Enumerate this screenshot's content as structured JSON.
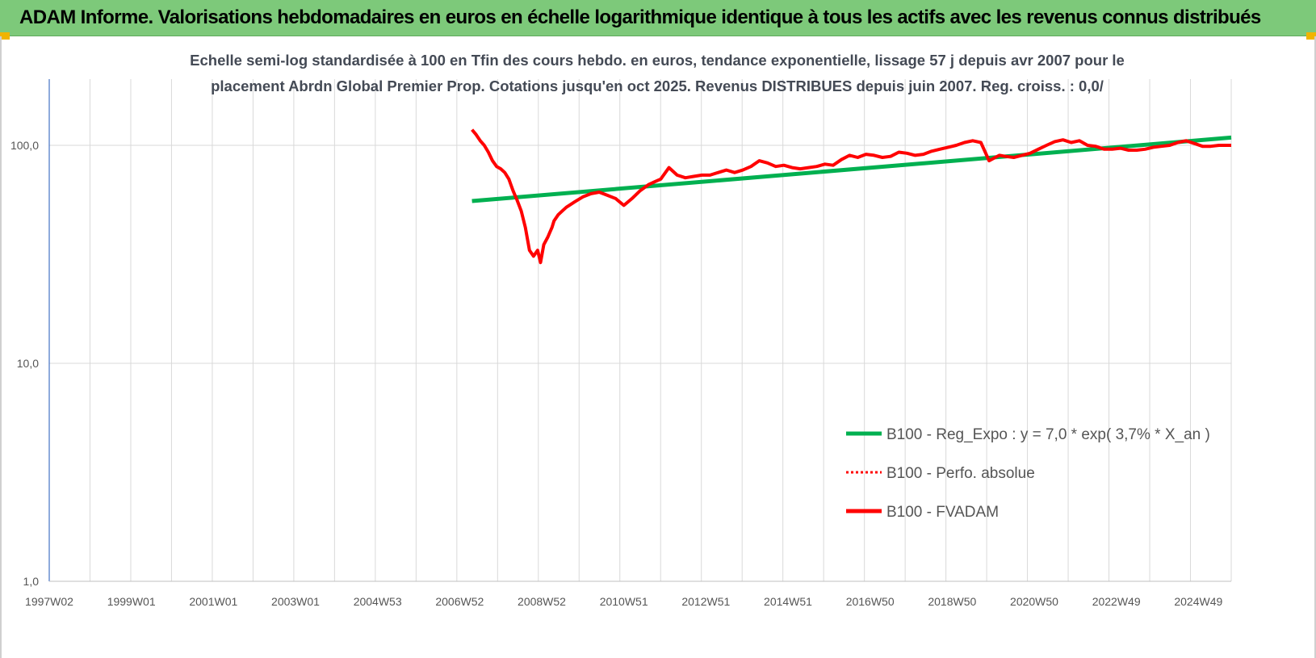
{
  "banner": {
    "title": "ADAM Informe. Valorisations hebdomadaires en euros en échelle logarithmique identique à tous les actifs avec les revenus connus distribués"
  },
  "colors": {
    "banner_bg": "#7dc97a",
    "trend": "#00b050",
    "series": "#ff0000",
    "grid": "#d9d9d9",
    "axis": "#4472c4"
  },
  "chart_data": {
    "type": "line",
    "title_lines": [
      "Echelle semi-log standardisée à 100 en Tfin des cours hebdo. en euros, tendance exponentielle, lissage 57 j depuis avr 2007 pour le",
      "placement Abrdn Global Premier Prop. Cotations jusqu'en oct 2025. Revenus DISTRIBUES depuis juin 2007. Reg. croiss. : 0,0/"
    ],
    "y_scale": "log",
    "ylim": [
      1,
      200
    ],
    "y_ticks": [
      {
        "value": 1,
        "label": "1,0"
      },
      {
        "value": 10,
        "label": "10,0"
      },
      {
        "value": 100,
        "label": "100,0"
      }
    ],
    "xlim": [
      1997.0,
      2025.8
    ],
    "x_ticks": [
      {
        "value": 1997.0,
        "label": "1997W02"
      },
      {
        "value": 1999.0,
        "label": "1999W01"
      },
      {
        "value": 2001.0,
        "label": "2001W01"
      },
      {
        "value": 2003.0,
        "label": "2003W01"
      },
      {
        "value": 2005.0,
        "label": "2004W53"
      },
      {
        "value": 2007.0,
        "label": "2006W52"
      },
      {
        "value": 2009.0,
        "label": "2008W52"
      },
      {
        "value": 2011.0,
        "label": "2010W51"
      },
      {
        "value": 2013.0,
        "label": "2012W51"
      },
      {
        "value": 2015.0,
        "label": "2014W51"
      },
      {
        "value": 2017.0,
        "label": "2016W50"
      },
      {
        "value": 2019.0,
        "label": "2018W50"
      },
      {
        "value": 2021.0,
        "label": "2020W50"
      },
      {
        "value": 2023.0,
        "label": "2022W49"
      },
      {
        "value": 2025.0,
        "label": "2024W49"
      }
    ],
    "grid": true,
    "legend_position": "right",
    "series": [
      {
        "name": "B100 - Reg_Expo : y = 7,0 * exp( 3,7% *  X_an )",
        "color": "#00b050",
        "style": "solid",
        "x": [
          2007.3,
          2025.8
        ],
        "y": [
          55.5,
          108.5
        ]
      },
      {
        "name": "B100 - Perfo. absolue",
        "color": "#ff0000",
        "style": "dotted",
        "x": [],
        "y": []
      },
      {
        "name": "B100 - FVADAM",
        "color": "#ff0000",
        "style": "solid",
        "x": [
          2007.3,
          2007.4,
          2007.5,
          2007.6,
          2007.7,
          2007.8,
          2007.9,
          2008.0,
          2008.1,
          2008.2,
          2008.3,
          2008.4,
          2008.5,
          2008.6,
          2008.7,
          2008.8,
          2008.9,
          2008.97,
          2009.05,
          2009.15,
          2009.2,
          2009.25,
          2009.3,
          2009.4,
          2009.5,
          2009.6,
          2009.8,
          2010.0,
          2010.2,
          2010.4,
          2010.6,
          2010.8,
          2011.0,
          2011.2,
          2011.4,
          2011.6,
          2011.75,
          2011.9,
          2012.1,
          2012.3,
          2012.5,
          2012.7,
          2012.9,
          2013.1,
          2013.3,
          2013.5,
          2013.7,
          2013.9,
          2014.1,
          2014.3,
          2014.5,
          2014.7,
          2014.9,
          2015.1,
          2015.3,
          2015.5,
          2015.7,
          2015.9,
          2016.1,
          2016.3,
          2016.5,
          2016.7,
          2016.9,
          2017.1,
          2017.3,
          2017.5,
          2017.7,
          2017.9,
          2018.1,
          2018.3,
          2018.5,
          2018.7,
          2018.9,
          2019.1,
          2019.3,
          2019.5,
          2019.7,
          2019.9,
          2020.05,
          2020.15,
          2020.3,
          2020.5,
          2020.7,
          2020.9,
          2021.1,
          2021.3,
          2021.5,
          2021.7,
          2021.9,
          2022.1,
          2022.3,
          2022.5,
          2022.7,
          2022.9,
          2023.1,
          2023.3,
          2023.5,
          2023.7,
          2023.9,
          2024.1,
          2024.3,
          2024.5,
          2024.7,
          2024.9,
          2025.1,
          2025.3,
          2025.5,
          2025.8
        ],
        "y": [
          118,
          112,
          105,
          100,
          93,
          85,
          80,
          78,
          75,
          70,
          62,
          56,
          50,
          42,
          33,
          31,
          33,
          29,
          35,
          38,
          40,
          42,
          45,
          48,
          50,
          52,
          55,
          58,
          60,
          61,
          59,
          57,
          53,
          57,
          62,
          66,
          68,
          70,
          79,
          73,
          71,
          72,
          73,
          73,
          75,
          77,
          75,
          77,
          80,
          85,
          83,
          80,
          81,
          79,
          78,
          79,
          80,
          82,
          81,
          86,
          90,
          88,
          91,
          90,
          88,
          89,
          93,
          92,
          90,
          91,
          94,
          96,
          98,
          100,
          103,
          105,
          103,
          85,
          88,
          90,
          89,
          88,
          90,
          92,
          96,
          100,
          104,
          106,
          103,
          105,
          100,
          99,
          96,
          96,
          97,
          95,
          95,
          96,
          98,
          99,
          100,
          103,
          105,
          102,
          99,
          99,
          100,
          100
        ]
      }
    ]
  }
}
